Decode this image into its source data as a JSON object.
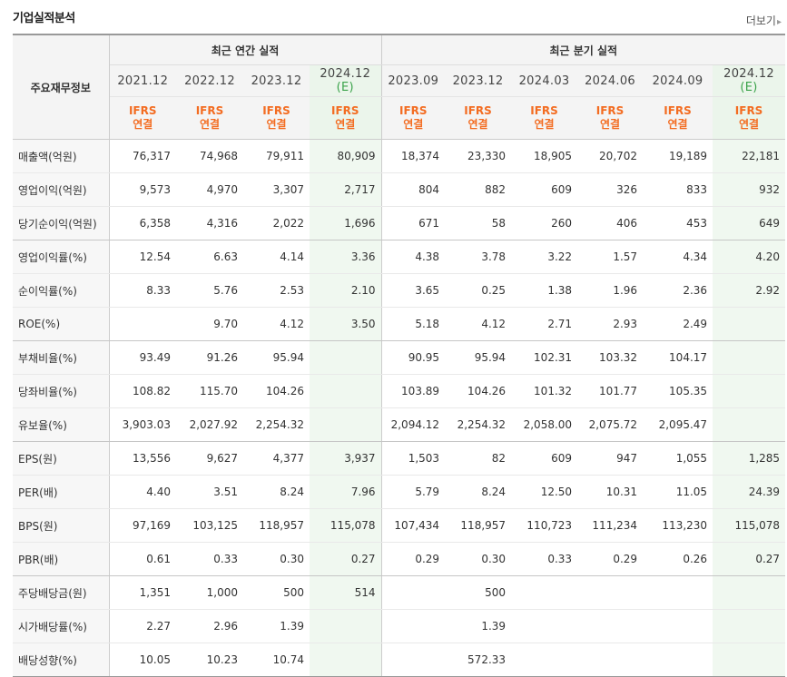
{
  "header": {
    "title": "기업실적분석",
    "more_label": "더보기"
  },
  "table": {
    "label_header": "주요재무정보",
    "group_annual": "최근 연간 실적",
    "group_quarterly": "최근 분기 실적",
    "periods": [
      {
        "top": "2021.12",
        "sub": "",
        "est": false
      },
      {
        "top": "2022.12",
        "sub": "",
        "est": false
      },
      {
        "top": "2023.12",
        "sub": "",
        "est": false
      },
      {
        "top": "2024.12",
        "sub": "(E)",
        "est": true
      },
      {
        "top": "2023.09",
        "sub": "",
        "est": false
      },
      {
        "top": "2023.12",
        "sub": "",
        "est": false
      },
      {
        "top": "2024.03",
        "sub": "",
        "est": false
      },
      {
        "top": "2024.06",
        "sub": "",
        "est": false
      },
      {
        "top": "2024.09",
        "sub": "",
        "est": false
      },
      {
        "top": "2024.12",
        "sub": "(E)",
        "est": true
      }
    ],
    "ifrs_line1": "IFRS",
    "ifrs_line2": "연결",
    "rows": [
      {
        "label": "매출액(억원)",
        "values": [
          "76,317",
          "74,968",
          "79,911",
          "80,909",
          "18,374",
          "23,330",
          "18,905",
          "20,702",
          "19,189",
          "22,181"
        ],
        "group_end": false
      },
      {
        "label": "영업이익(억원)",
        "values": [
          "9,573",
          "4,970",
          "3,307",
          "2,717",
          "804",
          "882",
          "609",
          "326",
          "833",
          "932"
        ],
        "group_end": false
      },
      {
        "label": "당기순이익(억원)",
        "values": [
          "6,358",
          "4,316",
          "2,022",
          "1,696",
          "671",
          "58",
          "260",
          "406",
          "453",
          "649"
        ],
        "group_end": true
      },
      {
        "label": "영업이익률(%)",
        "values": [
          "12.54",
          "6.63",
          "4.14",
          "3.36",
          "4.38",
          "3.78",
          "3.22",
          "1.57",
          "4.34",
          "4.20"
        ],
        "group_end": false
      },
      {
        "label": "순이익률(%)",
        "values": [
          "8.33",
          "5.76",
          "2.53",
          "2.10",
          "3.65",
          "0.25",
          "1.38",
          "1.96",
          "2.36",
          "2.92"
        ],
        "group_end": false
      },
      {
        "label": "ROE(%)",
        "values": [
          "",
          "9.70",
          "4.12",
          "3.50",
          "5.18",
          "4.12",
          "2.71",
          "2.93",
          "2.49",
          ""
        ],
        "group_end": true
      },
      {
        "label": "부채비율(%)",
        "values": [
          "93.49",
          "91.26",
          "95.94",
          "",
          "90.95",
          "95.94",
          "102.31",
          "103.32",
          "104.17",
          ""
        ],
        "group_end": false
      },
      {
        "label": "당좌비율(%)",
        "values": [
          "108.82",
          "115.70",
          "104.26",
          "",
          "103.89",
          "104.26",
          "101.32",
          "101.77",
          "105.35",
          ""
        ],
        "group_end": false
      },
      {
        "label": "유보율(%)",
        "values": [
          "3,903.03",
          "2,027.92",
          "2,254.32",
          "",
          "2,094.12",
          "2,254.32",
          "2,058.00",
          "2,075.72",
          "2,095.47",
          ""
        ],
        "group_end": true
      },
      {
        "label": "EPS(원)",
        "values": [
          "13,556",
          "9,627",
          "4,377",
          "3,937",
          "1,503",
          "82",
          "609",
          "947",
          "1,055",
          "1,285"
        ],
        "group_end": false
      },
      {
        "label": "PER(배)",
        "values": [
          "4.40",
          "3.51",
          "8.24",
          "7.96",
          "5.79",
          "8.24",
          "12.50",
          "10.31",
          "11.05",
          "24.39"
        ],
        "group_end": false
      },
      {
        "label": "BPS(원)",
        "values": [
          "97,169",
          "103,125",
          "118,957",
          "115,078",
          "107,434",
          "118,957",
          "110,723",
          "111,234",
          "113,230",
          "115,078"
        ],
        "group_end": false
      },
      {
        "label": "PBR(배)",
        "values": [
          "0.61",
          "0.33",
          "0.30",
          "0.27",
          "0.29",
          "0.30",
          "0.33",
          "0.29",
          "0.26",
          "0.27"
        ],
        "group_end": true
      },
      {
        "label": "주당배당금(원)",
        "values": [
          "1,351",
          "1,000",
          "500",
          "514",
          "",
          "500",
          "",
          "",
          "",
          ""
        ],
        "group_end": false
      },
      {
        "label": "시가배당률(%)",
        "values": [
          "2.27",
          "2.96",
          "1.39",
          "",
          "",
          "1.39",
          "",
          "",
          "",
          ""
        ],
        "group_end": false
      },
      {
        "label": "배당성향(%)",
        "values": [
          "10.05",
          "10.23",
          "10.74",
          "",
          "",
          "572.33",
          "",
          "",
          "",
          ""
        ],
        "group_end": true
      }
    ]
  }
}
